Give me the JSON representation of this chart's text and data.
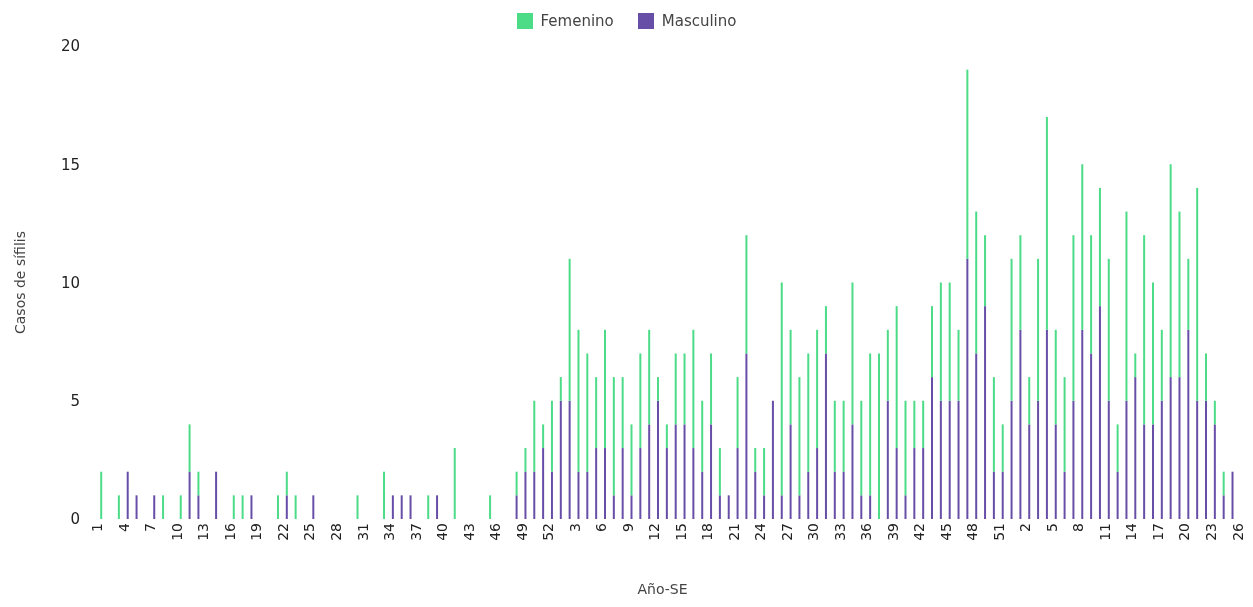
{
  "chart_data": {
    "type": "bar",
    "stacked": true,
    "xlabel": "Año-SE",
    "ylabel": "Casos de sífilis",
    "legend": "top",
    "ylim": [
      0,
      20
    ],
    "yticks": [
      0,
      5,
      10,
      15,
      20
    ],
    "categories": [
      "1",
      null,
      null,
      "4",
      null,
      null,
      "7",
      null,
      null,
      "10",
      null,
      null,
      "13",
      null,
      null,
      "16",
      null,
      null,
      "19",
      null,
      null,
      "22",
      null,
      null,
      "25",
      null,
      null,
      "28",
      null,
      null,
      "31",
      null,
      null,
      "34",
      null,
      null,
      "37",
      null,
      null,
      "40",
      null,
      null,
      "43",
      null,
      null,
      "46",
      null,
      null,
      "49",
      null,
      null,
      "52",
      null,
      null,
      "3",
      null,
      null,
      "6",
      null,
      null,
      "9",
      null,
      null,
      "12",
      null,
      null,
      "15",
      null,
      null,
      "18",
      null,
      null,
      "21",
      null,
      null,
      "24",
      null,
      null,
      "27",
      null,
      null,
      "30",
      null,
      null,
      "33",
      null,
      null,
      "36",
      null,
      null,
      "39",
      null,
      null,
      "42",
      null,
      null,
      "45",
      null,
      null,
      "48",
      null,
      null,
      "51",
      null,
      null,
      "2",
      null,
      null,
      "5",
      null,
      null,
      "8",
      null,
      null,
      "11",
      null,
      null,
      "14",
      null,
      null,
      "17",
      null,
      null,
      "20",
      null,
      null,
      "23",
      null,
      null,
      "26"
    ],
    "series": [
      {
        "name": "Masculino",
        "color": "#674ea7",
        "values": [
          0,
          0,
          0,
          0,
          2,
          1,
          0,
          1,
          0,
          0,
          0,
          2,
          1,
          0,
          2,
          0,
          0,
          0,
          1,
          0,
          0,
          0,
          1,
          0,
          0,
          1,
          0,
          0,
          0,
          0,
          0,
          0,
          0,
          0,
          1,
          1,
          1,
          0,
          0,
          1,
          0,
          0,
          0,
          0,
          0,
          0,
          0,
          0,
          1,
          2,
          2,
          3,
          2,
          5,
          5,
          2,
          2,
          3,
          3,
          1,
          3,
          1,
          3,
          4,
          5,
          3,
          4,
          4,
          3,
          2,
          4,
          1,
          1,
          3,
          7,
          2,
          1,
          5,
          1,
          4,
          1,
          2,
          3,
          7,
          2,
          2,
          4,
          1,
          1,
          0,
          5,
          3,
          1,
          3,
          3,
          6,
          5,
          5,
          5,
          11,
          7,
          9,
          2,
          2,
          5,
          8,
          4,
          5,
          8,
          4,
          2,
          5,
          8,
          7,
          9,
          5,
          2,
          5,
          6,
          4,
          4,
          5,
          6,
          6,
          8,
          5,
          5,
          4,
          1,
          2
        ]
      },
      {
        "name": "Femenino",
        "color": "#4cdc87",
        "values": [
          0,
          2,
          0,
          1,
          0,
          0,
          0,
          0,
          1,
          0,
          1,
          2,
          1,
          0,
          0,
          0,
          1,
          1,
          0,
          0,
          0,
          1,
          1,
          1,
          0,
          0,
          0,
          0,
          0,
          0,
          1,
          0,
          0,
          2,
          0,
          0,
          0,
          0,
          1,
          0,
          0,
          3,
          0,
          0,
          0,
          1,
          0,
          0,
          1,
          1,
          3,
          1,
          3,
          1,
          6,
          6,
          5,
          3,
          5,
          5,
          3,
          3,
          4,
          4,
          1,
          1,
          3,
          3,
          5,
          3,
          3,
          2,
          0,
          3,
          5,
          1,
          2,
          0,
          9,
          4,
          5,
          5,
          5,
          2,
          3,
          3,
          6,
          4,
          6,
          7,
          3,
          6,
          4,
          2,
          2,
          3,
          5,
          5,
          3,
          8,
          6,
          3,
          4,
          2,
          6,
          4,
          2,
          6,
          9,
          4,
          4,
          7,
          7,
          5,
          5,
          6,
          2,
          8,
          1,
          8,
          6,
          3,
          9,
          7,
          3,
          9,
          2,
          1,
          1,
          0
        ]
      }
    ]
  }
}
